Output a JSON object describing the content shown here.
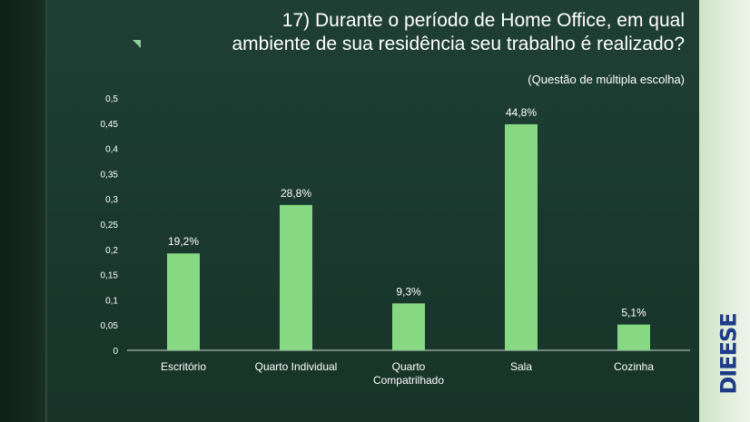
{
  "title_line1": "17) Durante o período de Home Office, em qual",
  "title_line2": "ambiente de sua residência seu trabalho é realizado?",
  "subtitle": "(Questão de múltipla escolha)",
  "logo_text": "DIEESE",
  "colors": {
    "bar": "#87d883",
    "text": "#ffffff",
    "background": "#1b3b31"
  },
  "chart_data": {
    "type": "bar",
    "title": "17) Durante o período de Home Office, em qual ambiente de sua residência seu trabalho é realizado?",
    "categories": [
      "Escritório",
      "Quarto Individual",
      "Quarto Compatrilhado",
      "Sala",
      "Cozinha"
    ],
    "category_label_lines": [
      [
        "Escritório"
      ],
      [
        "Quarto Individual"
      ],
      [
        "Quarto",
        "Compatrilhado"
      ],
      [
        "Sala"
      ],
      [
        "Cozinha"
      ]
    ],
    "values": [
      0.192,
      0.288,
      0.093,
      0.448,
      0.051
    ],
    "data_labels": [
      "19,2%",
      "28,8%",
      "9,3%",
      "44,8%",
      "5,1%"
    ],
    "ylim": [
      0,
      0.5
    ],
    "yticks": [
      "0",
      "0,05",
      "0,1",
      "0,15",
      "0,2",
      "0,25",
      "0,3",
      "0,35",
      "0,4",
      "0,45",
      "0,5"
    ],
    "grid": false,
    "legend": "none"
  }
}
